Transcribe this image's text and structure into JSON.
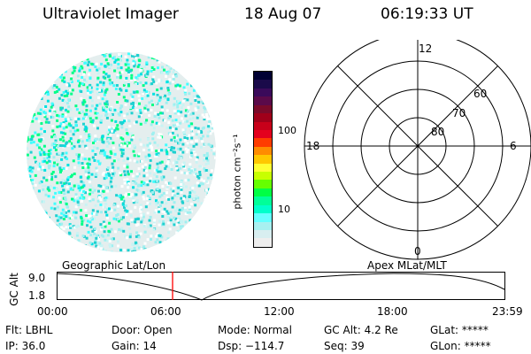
{
  "header": {
    "instrument": "Ultraviolet Imager",
    "date": "18 Aug 07",
    "time": "06:19:33 UT"
  },
  "colorbar": {
    "unit_label": "photon cm⁻²s⁻¹",
    "ticks": [
      "100",
      "10"
    ],
    "colors": [
      "#000033",
      "#1a0a4a",
      "#3a0a5a",
      "#5a0a4a",
      "#7a0a2a",
      "#a0001a",
      "#c8001a",
      "#e4001e",
      "#ff3c00",
      "#ff8c00",
      "#ffc800",
      "#ffff33",
      "#c8ff00",
      "#66ff00",
      "#00ff44",
      "#00ff99",
      "#00ffcc",
      "#66ffff",
      "#a8f0f0",
      "#d8eef0",
      "#eeeeee"
    ]
  },
  "polar": {
    "mlt_labels": {
      "top": "12",
      "left": "18",
      "right": "6",
      "bottom": "0"
    },
    "lat_labels": [
      "60",
      "70",
      "80"
    ]
  },
  "timeline": {
    "left_label": "Geographic Lat/Lon",
    "right_label": "Apex MLat/MLT",
    "axis_label": "GC Alt",
    "y_max": "9.0",
    "y_min": "1.8",
    "x_ticks": [
      "00:00",
      "06:00",
      "12:00",
      "18:00",
      "23:59"
    ],
    "marker_color": "#ff0000"
  },
  "status": {
    "row1": [
      {
        "label": "Flt:",
        "value": "LBHL"
      },
      {
        "label": "Door:",
        "value": "Open"
      },
      {
        "label": "Mode:",
        "value": "Normal"
      },
      {
        "label": "GC Alt:",
        "value": "4.2 Re"
      },
      {
        "label": "GLat:",
        "value": "*****"
      }
    ],
    "row2": [
      {
        "label": "IP:",
        "value": "36.0"
      },
      {
        "label": "Gain:",
        "value": "14"
      },
      {
        "label": "Dsp:",
        "value": "−114.7"
      },
      {
        "label": "Seq:",
        "value": "39"
      },
      {
        "label": "GLon:",
        "value": "*****"
      }
    ]
  }
}
